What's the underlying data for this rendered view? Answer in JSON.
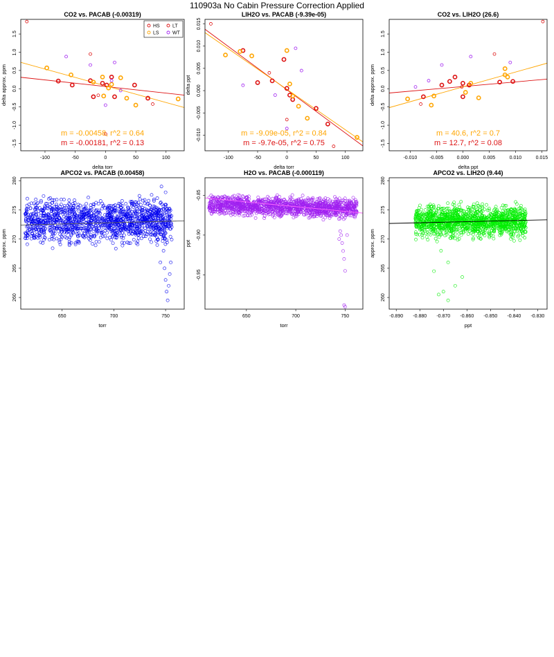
{
  "figure": {
    "title": "110903a   No Cabin Pressure Correction Applied"
  },
  "colors": {
    "HS": "#dd1111",
    "LS": "#ffa500",
    "LT": "#dd1111",
    "WT": "#a020f0",
    "blue": "#0000ee",
    "purple": "#a020f0",
    "green": "#00ee00"
  },
  "chart_data": [
    {
      "type": "scatter",
      "title": "CO2 vs. PACAB (-0.00319)",
      "xlabel": "delta torr",
      "ylabel": "delta approx. ppm",
      "xlim": [
        -140,
        130
      ],
      "ylim": [
        -1.7,
        1.9
      ],
      "xticks": [
        -100,
        -50,
        0,
        50,
        100
      ],
      "yticks": [
        -1.5,
        -1.0,
        -0.5,
        0.0,
        0.5,
        1.0,
        1.5
      ],
      "legend": {
        "position": "top-right",
        "entries": [
          "HS",
          "LT",
          "LS",
          "WT"
        ]
      },
      "series": [
        {
          "name": "HS",
          "points": [
            [
              -78,
              0.21
            ],
            [
              -55,
              0.1
            ],
            [
              -25,
              0.22
            ],
            [
              -20,
              -0.22
            ],
            [
              -5,
              0.15
            ],
            [
              2,
              0.1
            ],
            [
              10,
              0.32
            ],
            [
              15,
              -0.22
            ],
            [
              48,
              0.1
            ],
            [
              70,
              -0.26
            ]
          ]
        },
        {
          "name": "LS",
          "points": [
            [
              -97,
              0.57
            ],
            [
              -57,
              0.38
            ],
            [
              -20,
              0.18
            ],
            [
              -5,
              0.32
            ],
            [
              -3,
              -0.2
            ],
            [
              5,
              0.02
            ],
            [
              10,
              0.12
            ],
            [
              25,
              0.3
            ],
            [
              35,
              -0.26
            ],
            [
              50,
              -0.45
            ],
            [
              120,
              -0.28
            ]
          ]
        },
        {
          "name": "LT",
          "points": [
            [
              -130,
              1.84
            ],
            [
              -25,
              0.95
            ],
            [
              -12,
              -0.18
            ],
            [
              0,
              -1.24
            ],
            [
              78,
              -0.42
            ]
          ]
        },
        {
          "name": "WT",
          "points": [
            [
              -65,
              0.88
            ],
            [
              -25,
              0.65
            ],
            [
              0,
              -0.45
            ],
            [
              10,
              0.22
            ],
            [
              15,
              0.72
            ],
            [
              25,
              -0.05
            ]
          ]
        }
      ],
      "fit_lines": [
        {
          "name": "HS",
          "slope": -0.00181,
          "intercept": 0.06
        },
        {
          "name": "LS",
          "slope": -0.00458,
          "intercept": 0.08
        }
      ],
      "annotations": [
        {
          "text": "m = -0.00458, r^2 = 0.64",
          "color": "LS"
        },
        {
          "text": "m = -0.00181, r^2 = 0.13",
          "color": "HS"
        }
      ]
    },
    {
      "type": "scatter",
      "title": "LIH2O vs. PACAB (-9.39e-05)",
      "xlabel": "delta torr",
      "ylabel": "delta ppt",
      "xlim": [
        -140,
        130
      ],
      "ylim": [
        -0.0135,
        0.016
      ],
      "xticks": [
        -100,
        -50,
        0,
        50,
        100
      ],
      "yticks": [
        -0.01,
        -0.005,
        0.0,
        0.005,
        0.01,
        0.015
      ],
      "series": [
        {
          "name": "HS",
          "points": [
            [
              -75,
              0.009
            ],
            [
              -50,
              0.0018
            ],
            [
              -25,
              0.0022
            ],
            [
              -5,
              0.007
            ],
            [
              0,
              0.0005
            ],
            [
              5,
              -0.001
            ],
            [
              10,
              -0.002
            ],
            [
              50,
              -0.004
            ],
            [
              70,
              -0.0075
            ]
          ]
        },
        {
          "name": "LS",
          "points": [
            [
              -105,
              0.008
            ],
            [
              -80,
              0.0088
            ],
            [
              -60,
              0.0078
            ],
            [
              0,
              0.009
            ],
            [
              5,
              0.0015
            ],
            [
              10,
              -0.0012
            ],
            [
              20,
              -0.0035
            ],
            [
              35,
              -0.0062
            ],
            [
              120,
              -0.0105
            ]
          ]
        },
        {
          "name": "LT",
          "points": [
            [
              -130,
              0.015
            ],
            [
              -30,
              0.004
            ],
            [
              0,
              -0.0065
            ],
            [
              80,
              -0.0125
            ]
          ]
        },
        {
          "name": "WT",
          "points": [
            [
              -75,
              0.0012
            ],
            [
              -20,
              -0.001
            ],
            [
              15,
              0.0095
            ],
            [
              25,
              0.0045
            ],
            [
              0,
              -0.0085
            ]
          ]
        }
      ],
      "fit_lines": [
        {
          "name": "HS",
          "slope": -9.7e-05,
          "intercept": 0.0002
        },
        {
          "name": "LS",
          "slope": -9.09e-05,
          "intercept": 0.0003
        }
      ],
      "annotations": [
        {
          "text": "m = -9.09e-05, r^2 = 0.84",
          "color": "LS"
        },
        {
          "text": "m = -9.7e-05, r^2 = 0.75",
          "color": "HS"
        }
      ]
    },
    {
      "type": "scatter",
      "title": "CO2 vs. LIH2O (26.6)",
      "xlabel": "delta ppt",
      "ylabel": "delta approx. ppm",
      "xlim": [
        -0.014,
        0.016
      ],
      "ylim": [
        -1.7,
        1.9
      ],
      "xticks": [
        -0.01,
        -0.005,
        0.0,
        0.005,
        0.01,
        0.015
      ],
      "yticks": [
        -1.5,
        -1.0,
        -0.5,
        0.0,
        0.5,
        1.0,
        1.5
      ],
      "series": [
        {
          "name": "HS",
          "points": [
            [
              -0.0075,
              -0.22
            ],
            [
              -0.0025,
              0.2
            ],
            [
              -0.0015,
              0.32
            ],
            [
              0.0,
              0.15
            ],
            [
              0.0,
              -0.22
            ],
            [
              0.0095,
              0.2
            ],
            [
              0.007,
              0.18
            ],
            [
              -0.004,
              0.1
            ],
            [
              0.0012,
              0.1
            ]
          ]
        },
        {
          "name": "LS",
          "points": [
            [
              -0.0105,
              -0.28
            ],
            [
              -0.006,
              -0.45
            ],
            [
              -0.0055,
              -0.2
            ],
            [
              0.0005,
              -0.1
            ],
            [
              0.0015,
              0.15
            ],
            [
              0.008,
              0.38
            ],
            [
              0.008,
              0.55
            ],
            [
              0.0085,
              0.32
            ],
            [
              0.003,
              -0.25
            ]
          ]
        },
        {
          "name": "LT",
          "points": [
            [
              0.0152,
              1.84
            ],
            [
              0.006,
              0.95
            ],
            [
              -0.008,
              -0.42
            ],
            [
              -0.0002,
              0.05
            ]
          ]
        },
        {
          "name": "WT",
          "points": [
            [
              -0.004,
              0.65
            ],
            [
              0.009,
              0.72
            ],
            [
              -0.0065,
              0.22
            ],
            [
              0.0015,
              0.88
            ],
            [
              -0.009,
              0.05
            ]
          ]
        }
      ],
      "fit_lines": [
        {
          "name": "HS",
          "slope": 12.7,
          "intercept": 0.06
        },
        {
          "name": "LS",
          "slope": 40.6,
          "intercept": 0.05
        }
      ],
      "annotations": [
        {
          "text": "m = 40.6, r^2 = 0.7",
          "color": "LS"
        },
        {
          "text": "m = 12.7, r^2 = 0.08",
          "color": "HS"
        }
      ]
    },
    {
      "type": "scatter",
      "title": "APCO2 vs. PACAB (0.00458)",
      "xlabel": "torr",
      "ylabel": "approx. ppm",
      "xlim": [
        610,
        768
      ],
      "ylim": [
        258,
        280.5
      ],
      "xticks": [
        650,
        700,
        750
      ],
      "yticks": [
        260,
        265,
        270,
        275,
        280
      ],
      "color": "blue",
      "fit_line": {
        "slope": 0.00458,
        "intercept": 269.6
      },
      "cloud": {
        "x_range": [
          614,
          756
        ],
        "center": 273.0,
        "spread": 2.4
      }
    },
    {
      "type": "scatter",
      "title": "H2O vs. PACAB (-0.000119)",
      "xlabel": "torr",
      "ylabel": "ppt",
      "xlim": [
        608,
        768
      ],
      "ylim": [
        -0.993,
        -0.828
      ],
      "xticks": [
        650,
        700,
        750
      ],
      "yticks": [
        -0.95,
        -0.9,
        -0.85
      ],
      "color": "purple",
      "fit_line": {
        "slope": -0.000119,
        "intercept": -0.781
      },
      "cloud": {
        "x_range": [
          612,
          762
        ],
        "center": -0.863,
        "spread": 0.008
      }
    },
    {
      "type": "scatter",
      "title": "APCO2 vs. LIH2O (9.44)",
      "xlabel": "ppt",
      "ylabel": "approx. ppm",
      "xlim": [
        -0.893,
        -0.826
      ],
      "ylim": [
        258,
        280.5
      ],
      "xticks": [
        -0.89,
        -0.88,
        -0.87,
        -0.86,
        -0.85,
        -0.84,
        -0.83
      ],
      "yticks": [
        260,
        265,
        270,
        275,
        280
      ],
      "color": "green",
      "fit_line": {
        "slope": 9.44,
        "intercept": 281.1
      },
      "cloud": {
        "x_range": [
          -0.882,
          -0.835
        ],
        "center": 273.0,
        "spread": 1.8
      }
    }
  ]
}
